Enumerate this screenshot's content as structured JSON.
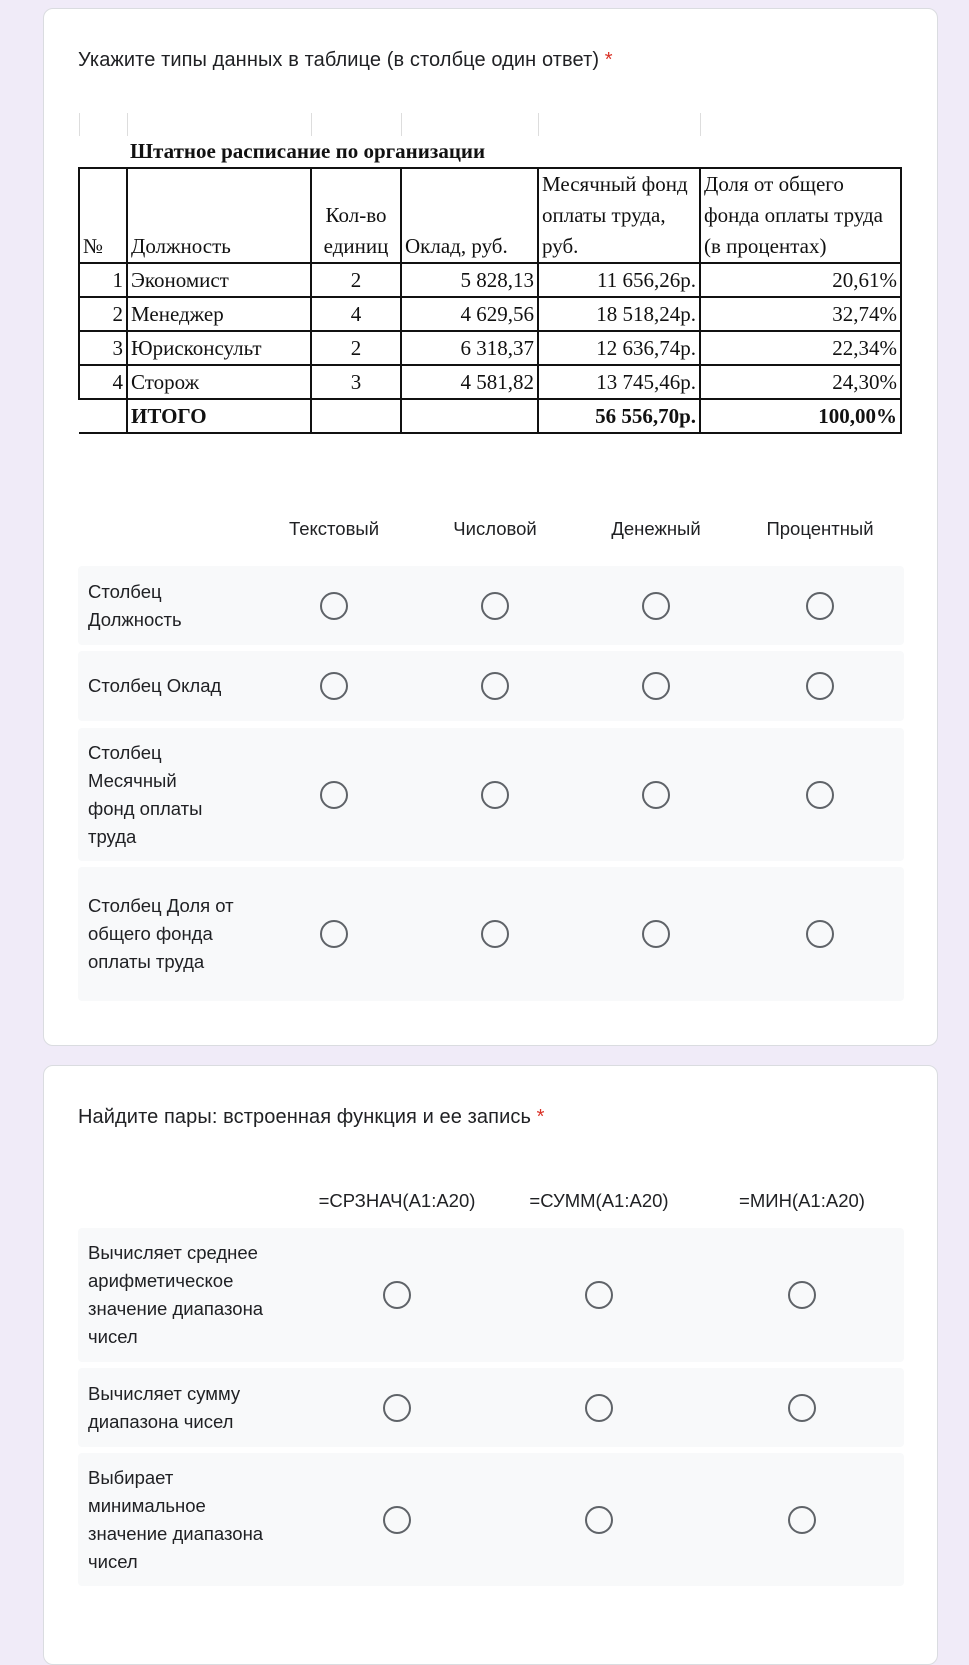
{
  "q1": {
    "title": "Укажите типы данных в таблице (в столбце один ответ)",
    "required_mark": "*",
    "sheet": {
      "title": "Штатное расписание по организации",
      "headers": [
        "№",
        "Должность",
        "Кол-во единиц",
        "Оклад, руб.",
        "Месячный фонд оплаты труда, руб.",
        "Доля от общего фонда оплаты труда (в процентах)"
      ],
      "rows": [
        [
          "1",
          "Экономист",
          "2",
          "5 828,13",
          "11 656,26р.",
          "20,61%"
        ],
        [
          "2",
          "Менеджер",
          "4",
          "4 629,56",
          "18 518,24р.",
          "32,74%"
        ],
        [
          "3",
          "Юрисконсульт",
          "2",
          "6 318,37",
          "12 636,74р.",
          "22,34%"
        ],
        [
          "4",
          "Сторож",
          "3",
          "4 581,82",
          "13 745,46р.",
          "24,30%"
        ]
      ],
      "total": [
        "",
        "ИТОГО",
        "",
        "",
        "56 556,70р.",
        "100,00%"
      ]
    },
    "columns": [
      "Текстовый",
      "Числовой",
      "Денежный",
      "Процентный"
    ],
    "rows": [
      "Столбец Должность",
      "Столбец Оклад",
      "Столбец Месячный фонд оплаты труда",
      "Столбец Доля от общего фонда оплаты труда"
    ]
  },
  "q2": {
    "title": "Найдите пары: встроенная функция и ее запись",
    "required_mark": "*",
    "columns": [
      "=СРЗНАЧ(A1:A20)",
      "=СУММ(A1:A20)",
      "=МИН(A1:A20)"
    ],
    "rows": [
      "Вычисляет среднее арифметическое значение диапазона чисел",
      "Вычисляет сумму диапазона чисел",
      "Выбирает минимальное значение диапазона чисел"
    ]
  },
  "colors": {
    "background": "#f0ebf8",
    "required": "#d93025",
    "row_bg": "#f8f9fa",
    "radio": "#5f6368"
  }
}
